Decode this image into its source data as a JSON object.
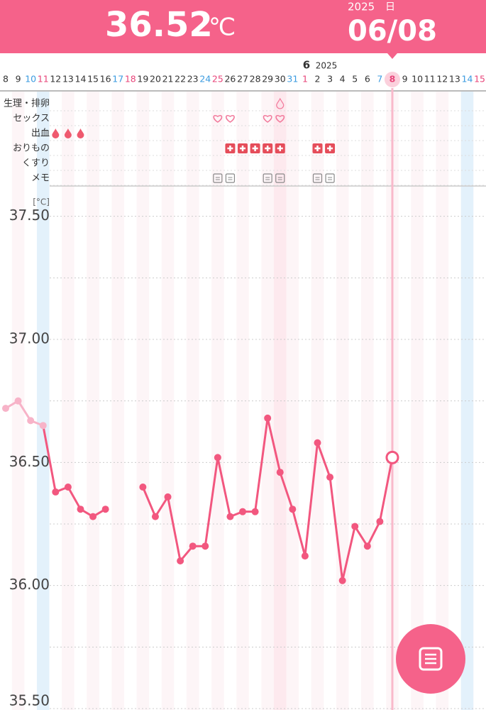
{
  "header": {
    "temperature": "36.52",
    "unit": "℃",
    "year": "2025",
    "weekday": "日",
    "date": "06/08"
  },
  "chart_data": {
    "type": "line",
    "month_label": "6",
    "month_year": "2025",
    "event_rows": [
      "生理・排卵",
      "セックス",
      "出血",
      "おりもの",
      "くすり",
      "メモ"
    ],
    "y_label": "[°C]",
    "categories": [
      "8",
      "9",
      "10",
      "11",
      "12",
      "13",
      "14",
      "15",
      "16",
      "17",
      "18",
      "19",
      "20",
      "21",
      "22",
      "23",
      "24",
      "25",
      "26",
      "27",
      "28",
      "29",
      "30",
      "31",
      "1",
      "2",
      "3",
      "4",
      "5",
      "6",
      "7",
      "8",
      "9",
      "10",
      "11",
      "12",
      "13",
      "14",
      "15"
    ],
    "category_colors": [
      "#333",
      "#333",
      "#3b9be0",
      "#e8457a",
      "#333",
      "#333",
      "#333",
      "#333",
      "#333",
      "#3b9be0",
      "#e8457a",
      "#333",
      "#333",
      "#333",
      "#333",
      "#333",
      "#3b9be0",
      "#e8457a",
      "#333",
      "#333",
      "#333",
      "#333",
      "#333",
      "#3b9be0",
      "#e8457a",
      "#333",
      "#333",
      "#333",
      "#333",
      "#333",
      "#3b9be0",
      "#e8457a",
      "#333",
      "#333",
      "#333",
      "#333",
      "#333",
      "#3b9be0",
      "#e8457a"
    ],
    "series": [
      {
        "color": "#f7b3c8",
        "values": [
          36.72,
          36.75,
          36.67,
          36.65,
          null,
          null,
          null,
          null,
          null,
          null,
          null,
          null,
          null,
          null,
          null,
          null,
          null,
          null,
          null,
          null,
          null,
          null,
          null,
          null,
          null,
          null,
          null,
          null,
          null,
          null,
          null,
          null,
          null,
          null,
          null,
          null,
          null,
          null,
          null
        ]
      },
      {
        "color": "#f2577f",
        "values": [
          null,
          null,
          null,
          null,
          36.38,
          36.4,
          36.31,
          36.28,
          36.31,
          null,
          null,
          36.4,
          36.28,
          36.36,
          36.1,
          36.16,
          36.16,
          36.52,
          36.28,
          36.3,
          36.3,
          36.68,
          36.46,
          36.31,
          36.12,
          36.58,
          36.44,
          36.02,
          36.24,
          36.16,
          36.26,
          36.52,
          null,
          null,
          null,
          null,
          null,
          null,
          null
        ]
      }
    ],
    "ylim": [
      35.5,
      37.6
    ],
    "yticks": [
      {
        "value": 35.5,
        "label": "35.50"
      },
      {
        "value": 36,
        "label": "36.00"
      },
      {
        "value": 36.5,
        "label": "36.50"
      },
      {
        "value": 37,
        "label": "37.00"
      },
      {
        "value": 37.5,
        "label": "37.50"
      }
    ],
    "minor_yticks": [
      35.75,
      36.25,
      36.75,
      37.25
    ],
    "grid": true
  }
}
